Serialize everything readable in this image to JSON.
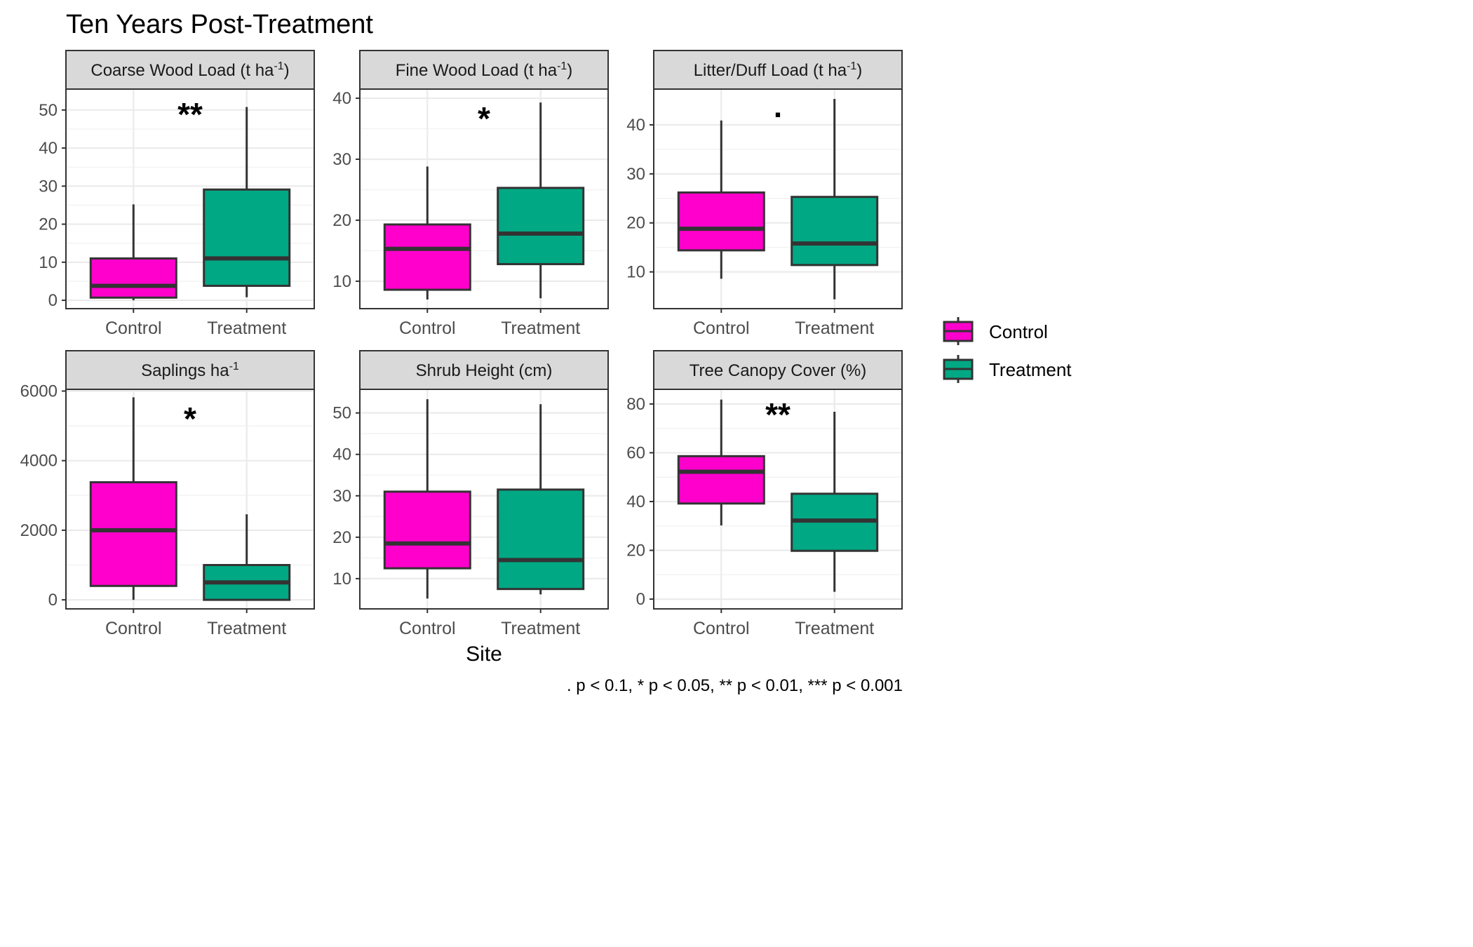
{
  "title": "Ten Years Post-Treatment",
  "xlabel": "Site",
  "footnote": ". p < 0.1, * p < 0.05, ** p < 0.01, *** p < 0.001",
  "colors": {
    "Control": "#ff00cc",
    "Treatment": "#00a884",
    "outline": "#333333",
    "strip": "#d9d9d9",
    "grid": "#ebebeb"
  },
  "legend": {
    "position": "right",
    "items": [
      {
        "label": "Control",
        "color": "#ff00cc"
      },
      {
        "label": "Treatment",
        "color": "#00a884"
      }
    ]
  },
  "chart_data": [
    {
      "type": "box",
      "title": "Coarse Wood Load (t ha-1)",
      "title_base": "Coarse Wood Load (t ha",
      "title_sup": "-1",
      "title_tail": ")",
      "significance": "**",
      "ylim": [
        -2.2,
        55.5
      ],
      "yticks": [
        0,
        10,
        20,
        30,
        40,
        50
      ],
      "tick_labels": [
        "0",
        "10",
        "20",
        "30",
        "40",
        "50"
      ],
      "categories": [
        "Control",
        "Treatment"
      ],
      "boxes": [
        {
          "group": "Control",
          "whisker_low": 0,
          "q1": 0.7,
          "median": 3.8,
          "q3": 11,
          "whisker_high": 25.2
        },
        {
          "group": "Treatment",
          "whisker_low": 0.8,
          "q1": 3.8,
          "median": 11,
          "q3": 29.1,
          "whisker_high": 50.8
        }
      ]
    },
    {
      "type": "box",
      "title": "Fine Wood Load (t ha-1)",
      "title_base": "Fine Wood Load (t ha",
      "title_sup": "-1",
      "title_tail": ")",
      "significance": "*",
      "ylim": [
        5.5,
        41.5
      ],
      "yticks": [
        10,
        20,
        30,
        40
      ],
      "tick_labels": [
        "10",
        "20",
        "30",
        "40"
      ],
      "categories": [
        "Control",
        "Treatment"
      ],
      "boxes": [
        {
          "group": "Control",
          "whisker_low": 7,
          "q1": 8.6,
          "median": 15.3,
          "q3": 19.3,
          "whisker_high": 28.8
        },
        {
          "group": "Treatment",
          "whisker_low": 7.2,
          "q1": 12.8,
          "median": 17.8,
          "q3": 25.3,
          "whisker_high": 39.3
        }
      ]
    },
    {
      "type": "box",
      "title": "Litter/Duff Load (t ha-1)",
      "title_base": "Litter/Duff Load (t ha",
      "title_sup": "-1",
      "title_tail": ")",
      "significance": ".",
      "ylim": [
        2.5,
        47.3
      ],
      "yticks": [
        10,
        20,
        30,
        40
      ],
      "tick_labels": [
        "10",
        "20",
        "30",
        "40"
      ],
      "categories": [
        "Control",
        "Treatment"
      ],
      "boxes": [
        {
          "group": "Control",
          "whisker_low": 8.6,
          "q1": 14.4,
          "median": 18.8,
          "q3": 26.2,
          "whisker_high": 40.9
        },
        {
          "group": "Treatment",
          "whisker_low": 4.4,
          "q1": 11.4,
          "median": 15.8,
          "q3": 25.3,
          "whisker_high": 45.3
        }
      ]
    },
    {
      "type": "box",
      "title": "Saplings ha-1",
      "title_base": "Saplings ha",
      "title_sup": "-1",
      "title_tail": "",
      "significance": "*",
      "ylim": [
        -260,
        6050
      ],
      "yticks": [
        0,
        2000,
        4000,
        6000
      ],
      "tick_labels": [
        "0",
        "2000",
        "4000",
        "6000"
      ],
      "categories": [
        "Control",
        "Treatment"
      ],
      "boxes": [
        {
          "group": "Control",
          "whisker_low": 0,
          "q1": 400,
          "median": 2000,
          "q3": 3380,
          "whisker_high": 5820
        },
        {
          "group": "Treatment",
          "whisker_low": 0,
          "q1": 0,
          "median": 500,
          "q3": 1000,
          "whisker_high": 2460
        }
      ]
    },
    {
      "type": "box",
      "title": "Shrub Height (cm)",
      "title_base": "Shrub Height (cm)",
      "title_sup": "",
      "title_tail": "",
      "significance": "",
      "ylim": [
        2.7,
        55.7
      ],
      "yticks": [
        10,
        20,
        30,
        40,
        50
      ],
      "tick_labels": [
        "10",
        "20",
        "30",
        "40",
        "50"
      ],
      "categories": [
        "Control",
        "Treatment"
      ],
      "boxes": [
        {
          "group": "Control",
          "whisker_low": 5.2,
          "q1": 12.5,
          "median": 18.5,
          "q3": 31,
          "whisker_high": 53.3
        },
        {
          "group": "Treatment",
          "whisker_low": 6.2,
          "q1": 7.5,
          "median": 14.5,
          "q3": 31.5,
          "whisker_high": 52.1
        }
      ]
    },
    {
      "type": "box",
      "title": "Tree Canopy Cover (%)",
      "title_base": "Tree Canopy Cover (%)",
      "title_sup": "",
      "title_tail": "",
      "significance": "**",
      "ylim": [
        -4,
        86
      ],
      "yticks": [
        0,
        20,
        40,
        60,
        80
      ],
      "tick_labels": [
        "0",
        "20",
        "40",
        "60",
        "80"
      ],
      "categories": [
        "Control",
        "Treatment"
      ],
      "boxes": [
        {
          "group": "Control",
          "whisker_low": 30.2,
          "q1": 39.2,
          "median": 52.2,
          "q3": 58.6,
          "whisker_high": 81.8
        },
        {
          "group": "Treatment",
          "whisker_low": 3,
          "q1": 19.8,
          "median": 32.2,
          "q3": 43.2,
          "whisker_high": 76.8
        }
      ]
    }
  ]
}
